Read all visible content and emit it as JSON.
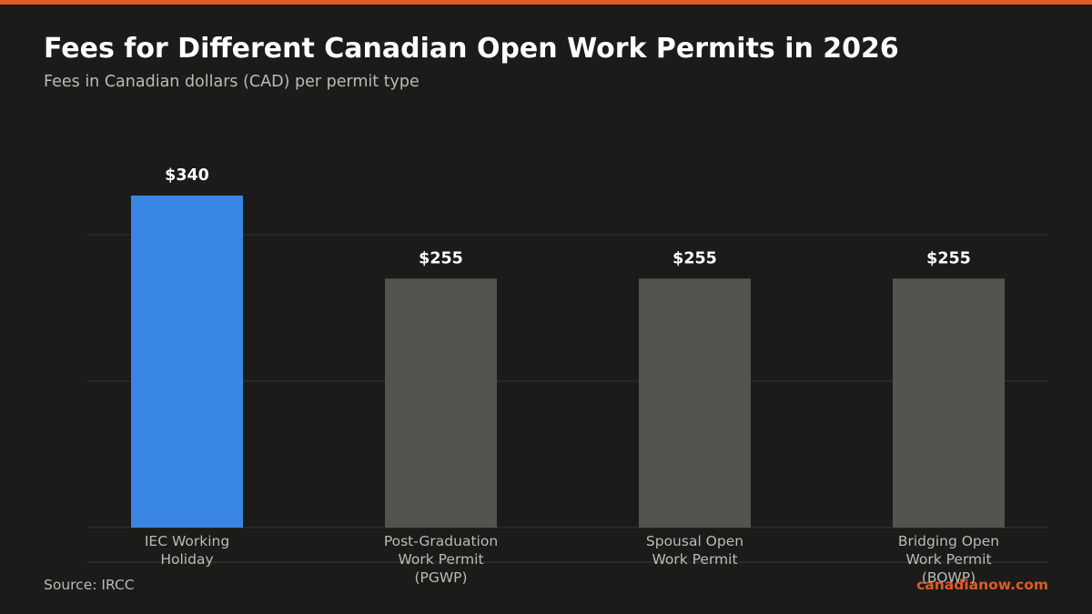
{
  "chart_data": {
    "type": "bar",
    "title": "Fees for Different Canadian Open Work Permits in 2026",
    "subtitle": "Fees in Canadian dollars (CAD) per permit type",
    "categories": [
      "IEC Working Holiday",
      "Post-Graduation Work Permit (PGWP)",
      "Spousal Open Work Permit",
      "Bridging Open Work Permit (BOWP)"
    ],
    "values": [
      340,
      255,
      255,
      255
    ],
    "value_labels": [
      "$340",
      "$255",
      "$255",
      "$255"
    ],
    "colors": [
      "#3a86e5",
      "#55534e",
      "#55534e",
      "#55534e"
    ],
    "ylim": [
      0,
      400
    ],
    "yticks": [
      0,
      150,
      300
    ],
    "grid": true,
    "source": "Source: IRCC",
    "brand": "canadianow.com"
  }
}
